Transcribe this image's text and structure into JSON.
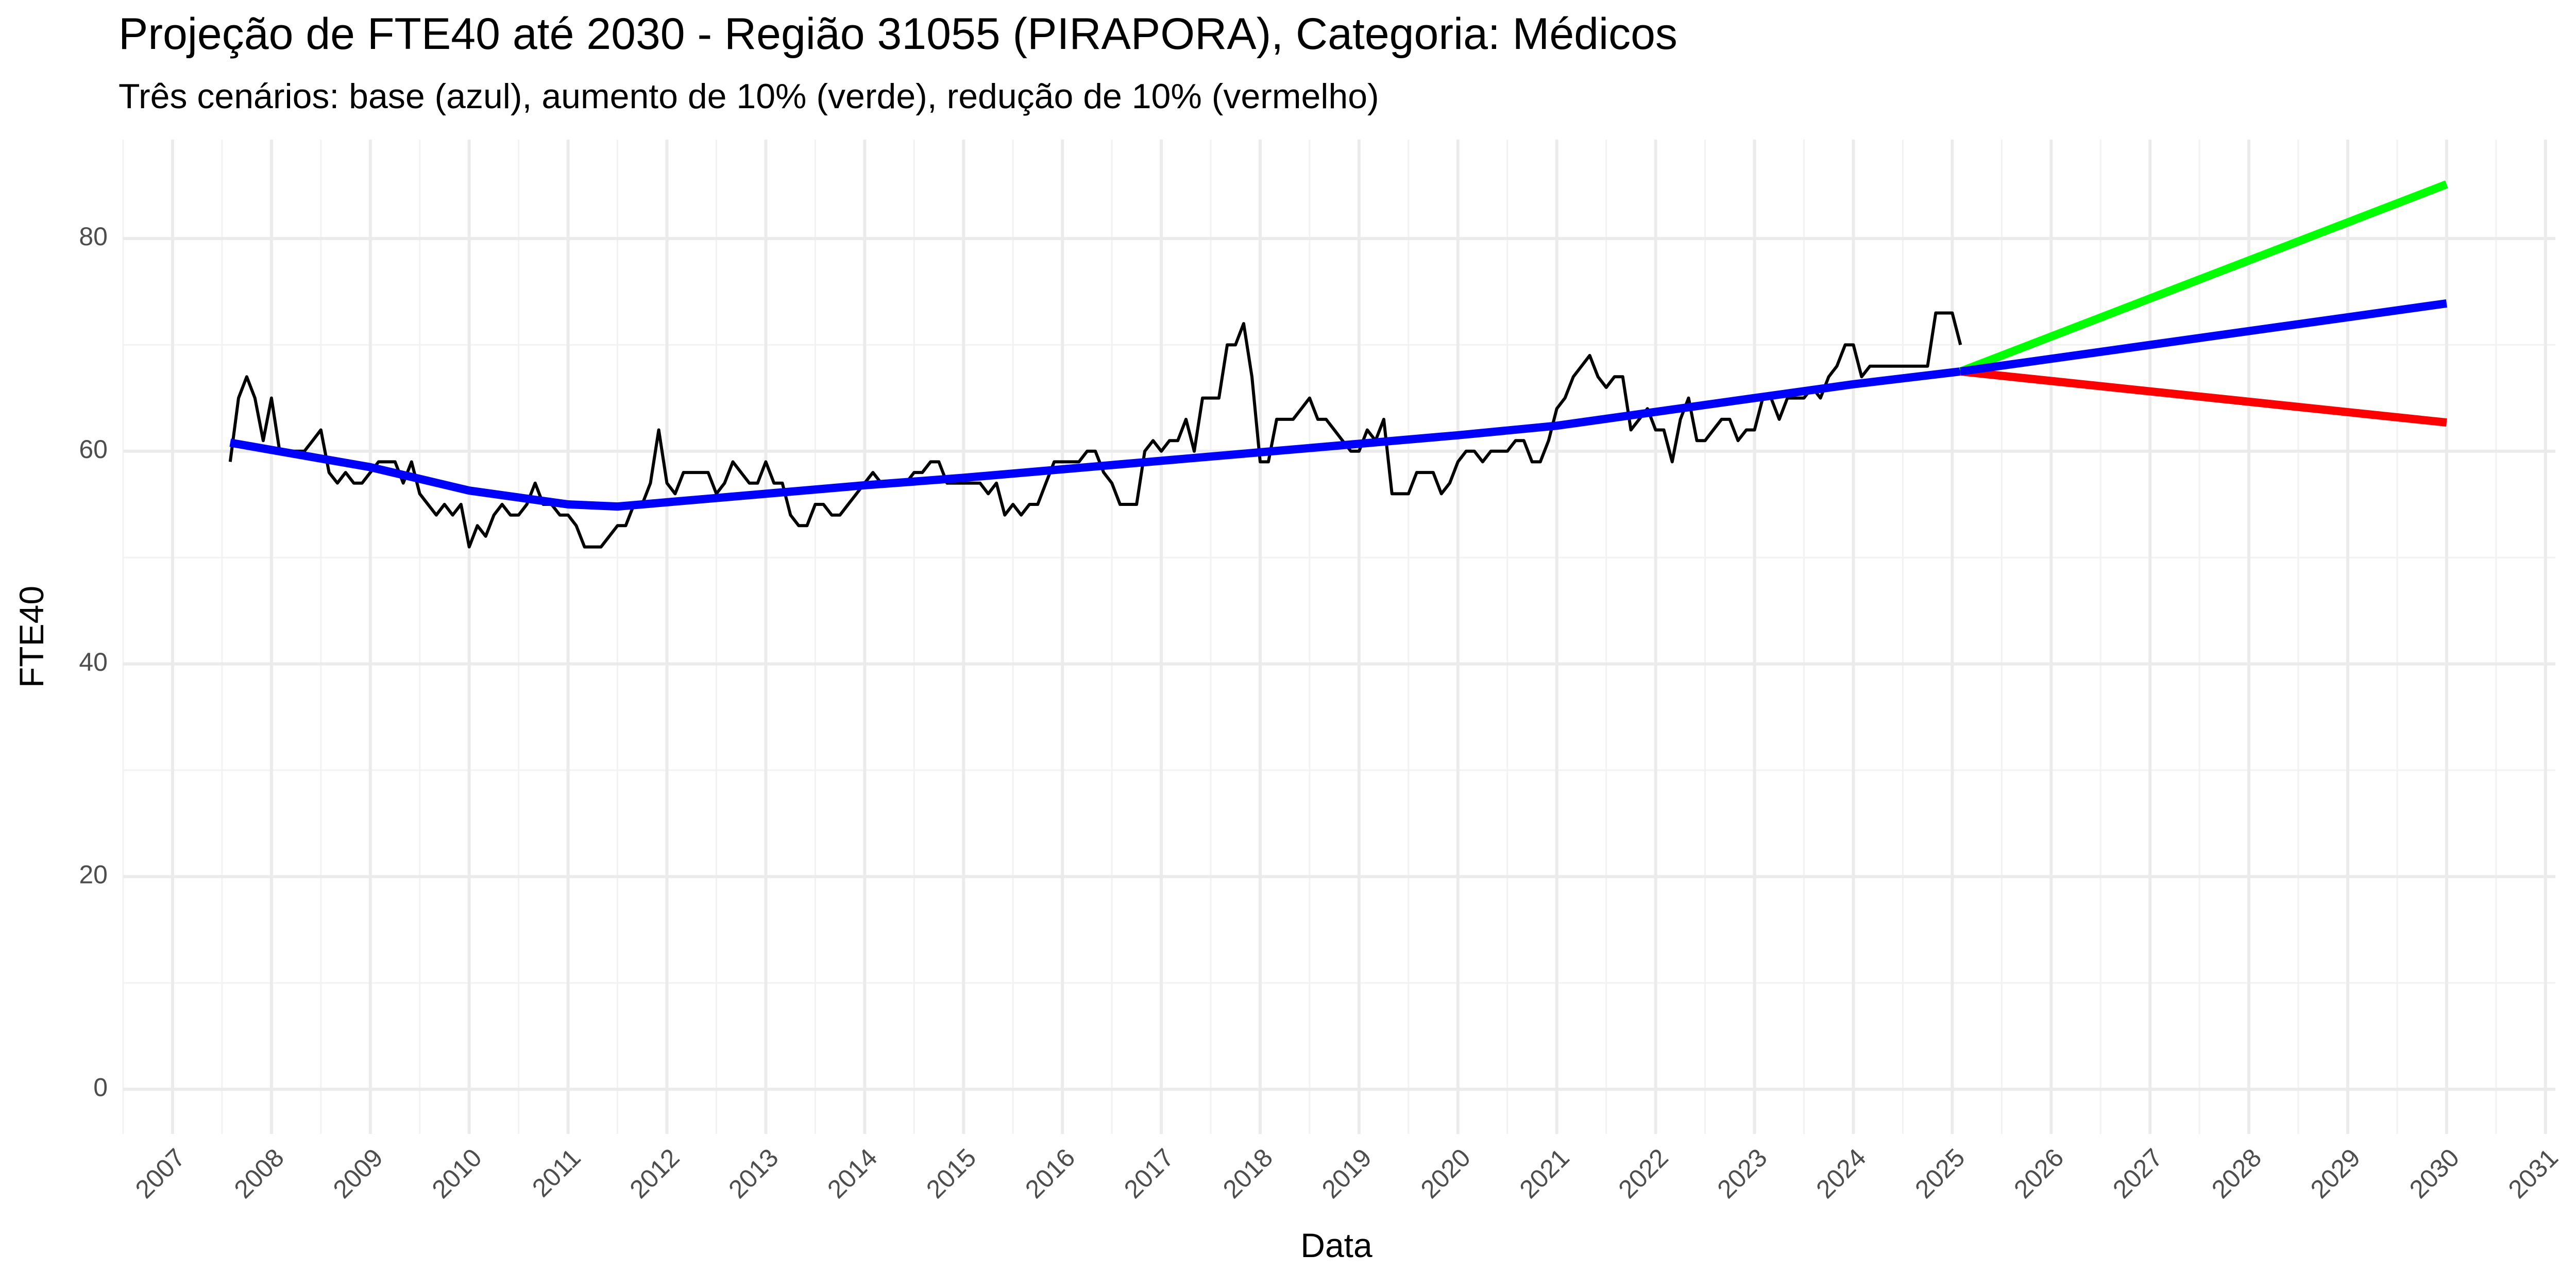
{
  "chart_data": {
    "type": "line",
    "title": "Projeção de FTE40 até 2030 - Região 31055 (PIRAPORA), Categoria: Médicos",
    "subtitle": "Três cenários: base (azul), aumento de 10% (verde), redução de 10% (vermelho)",
    "x_label": "Data",
    "y_label": "FTE40",
    "xlim": [
      2006.5,
      2031.1
    ],
    "ylim": [
      -4.2,
      89.3
    ],
    "xticks": [
      2007,
      2008,
      2009,
      2010,
      2011,
      2012,
      2013,
      2014,
      2015,
      2016,
      2017,
      2018,
      2019,
      2020,
      2021,
      2022,
      2023,
      2024,
      2025,
      2026,
      2027,
      2028,
      2029,
      2030,
      2031
    ],
    "yticks": [
      0,
      20,
      40,
      60,
      80
    ],
    "grid": true,
    "series": [
      {
        "color": "#000000",
        "x": [
          2007.583,
          2007.667,
          2007.75,
          2007.833,
          2007.917,
          2008.0,
          2008.083,
          2008.167,
          2008.25,
          2008.333,
          2008.417,
          2008.5,
          2008.583,
          2008.667,
          2008.75,
          2008.833,
          2008.917,
          2009.0,
          2009.083,
          2009.167,
          2009.25,
          2009.333,
          2009.417,
          2009.5,
          2009.583,
          2009.667,
          2009.75,
          2009.833,
          2009.917,
          2010.0,
          2010.083,
          2010.167,
          2010.25,
          2010.333,
          2010.417,
          2010.5,
          2010.583,
          2010.667,
          2010.75,
          2010.833,
          2010.917,
          2011.0,
          2011.083,
          2011.167,
          2011.25,
          2011.333,
          2011.417,
          2011.5,
          2011.583,
          2011.667,
          2011.75,
          2011.833,
          2011.917,
          2012.0,
          2012.083,
          2012.167,
          2012.25,
          2012.333,
          2012.417,
          2012.5,
          2012.583,
          2012.667,
          2012.75,
          2012.833,
          2012.917,
          2013.0,
          2013.083,
          2013.167,
          2013.25,
          2013.333,
          2013.417,
          2013.5,
          2013.583,
          2013.667,
          2013.75,
          2013.833,
          2013.917,
          2014.0,
          2014.083,
          2014.167,
          2014.25,
          2014.333,
          2014.417,
          2014.5,
          2014.583,
          2014.667,
          2014.75,
          2014.833,
          2014.917,
          2015.0,
          2015.083,
          2015.167,
          2015.25,
          2015.333,
          2015.417,
          2015.5,
          2015.583,
          2015.667,
          2015.75,
          2015.833,
          2015.917,
          2016.0,
          2016.083,
          2016.167,
          2016.25,
          2016.333,
          2016.417,
          2016.5,
          2016.583,
          2016.667,
          2016.75,
          2016.833,
          2016.917,
          2017.0,
          2017.083,
          2017.167,
          2017.25,
          2017.333,
          2017.417,
          2017.5,
          2017.583,
          2017.667,
          2017.75,
          2017.833,
          2017.917,
          2018.0,
          2018.083,
          2018.167,
          2018.25,
          2018.333,
          2018.417,
          2018.5,
          2018.583,
          2018.667,
          2018.75,
          2018.833,
          2018.917,
          2019.0,
          2019.083,
          2019.167,
          2019.25,
          2019.333,
          2019.417,
          2019.5,
          2019.583,
          2019.667,
          2019.75,
          2019.833,
          2019.917,
          2020.0,
          2020.083,
          2020.167,
          2020.25,
          2020.333,
          2020.417,
          2020.5,
          2020.583,
          2020.667,
          2020.75,
          2020.833,
          2020.917,
          2021.0,
          2021.083,
          2021.167,
          2021.25,
          2021.333,
          2021.417,
          2021.5,
          2021.583,
          2021.667,
          2021.75,
          2021.833,
          2021.917,
          2022.0,
          2022.083,
          2022.167,
          2022.25,
          2022.333,
          2022.417,
          2022.5,
          2022.583,
          2022.667,
          2022.75,
          2022.833,
          2022.917,
          2023.0,
          2023.083,
          2023.167,
          2023.25,
          2023.333,
          2023.417,
          2023.5,
          2023.583,
          2023.667,
          2023.75,
          2023.833,
          2023.917,
          2024.0,
          2024.083,
          2024.167,
          2024.25,
          2024.333,
          2024.417,
          2024.5,
          2024.583,
          2024.667,
          2024.75,
          2024.833,
          2024.917,
          2025.0,
          2025.083
        ],
        "values": [
          59,
          65,
          67,
          65,
          61,
          65,
          60,
          60,
          60,
          60,
          61,
          62,
          58,
          57,
          58,
          57,
          57,
          58,
          59,
          59,
          59,
          57,
          59,
          56,
          55,
          54,
          55,
          54,
          55,
          51,
          53,
          52,
          54,
          55,
          54,
          54,
          55,
          57,
          55,
          55,
          54,
          54,
          53,
          51,
          51,
          51,
          52,
          53,
          53,
          55,
          55,
          57,
          62,
          57,
          56,
          58,
          58,
          58,
          58,
          56,
          57,
          59,
          58,
          57,
          57,
          59,
          57,
          57,
          54,
          53,
          53,
          55,
          55,
          54,
          54,
          55,
          56,
          57,
          58,
          57,
          57,
          57,
          57,
          58,
          58,
          59,
          59,
          57,
          57,
          57,
          57,
          57,
          56,
          57,
          54,
          55,
          54,
          55,
          55,
          57,
          59,
          59,
          59,
          59,
          60,
          60,
          58,
          57,
          55,
          55,
          55,
          60,
          61,
          60,
          61,
          61,
          63,
          60,
          65,
          65,
          65,
          70,
          70,
          72,
          67,
          59,
          59,
          63,
          63,
          63,
          64,
          65,
          63,
          63,
          62,
          61,
          60,
          60,
          62,
          61,
          63,
          56,
          56,
          56,
          58,
          58,
          58,
          56,
          57,
          59,
          60,
          60,
          59,
          60,
          60,
          60,
          61,
          61,
          59,
          59,
          61,
          64,
          65,
          67,
          68,
          69,
          67,
          66,
          67,
          67,
          62,
          63,
          64,
          62,
          62,
          59,
          63,
          65,
          61,
          61,
          62,
          63,
          63,
          61,
          62,
          62,
          65,
          65,
          63,
          65,
          65,
          65,
          66,
          65,
          67,
          68,
          70,
          70,
          67,
          68,
          68,
          68,
          68,
          68,
          68,
          68,
          68,
          73,
          73,
          73,
          70
        ]
      },
      {
        "color": "#0000ff",
        "x": [
          2007.583,
          2009,
          2010,
          2011,
          2011.5,
          2012,
          2013,
          2014,
          2015,
          2016,
          2017,
          2018,
          2019,
          2020,
          2021,
          2022,
          2023,
          2024,
          2025.083
        ],
        "values": [
          60.8,
          58.5,
          56.3,
          55,
          54.8,
          55.2,
          56,
          56.8,
          57.5,
          58.3,
          59.1,
          59.9,
          60.7,
          61.5,
          62.4,
          63.7,
          65,
          66.3,
          67.5
        ]
      },
      {
        "color": "#00ff00",
        "x": [
          2025.083,
          2030.0
        ],
        "values": [
          67.5,
          85.1
        ]
      },
      {
        "color": "#ff0000",
        "x": [
          2025.083,
          2030.0
        ],
        "values": [
          67.5,
          62.7
        ]
      },
      {
        "color": "#0000ff",
        "x": [
          2025.083,
          2030.0
        ],
        "values": [
          67.5,
          73.9
        ]
      }
    ]
  }
}
